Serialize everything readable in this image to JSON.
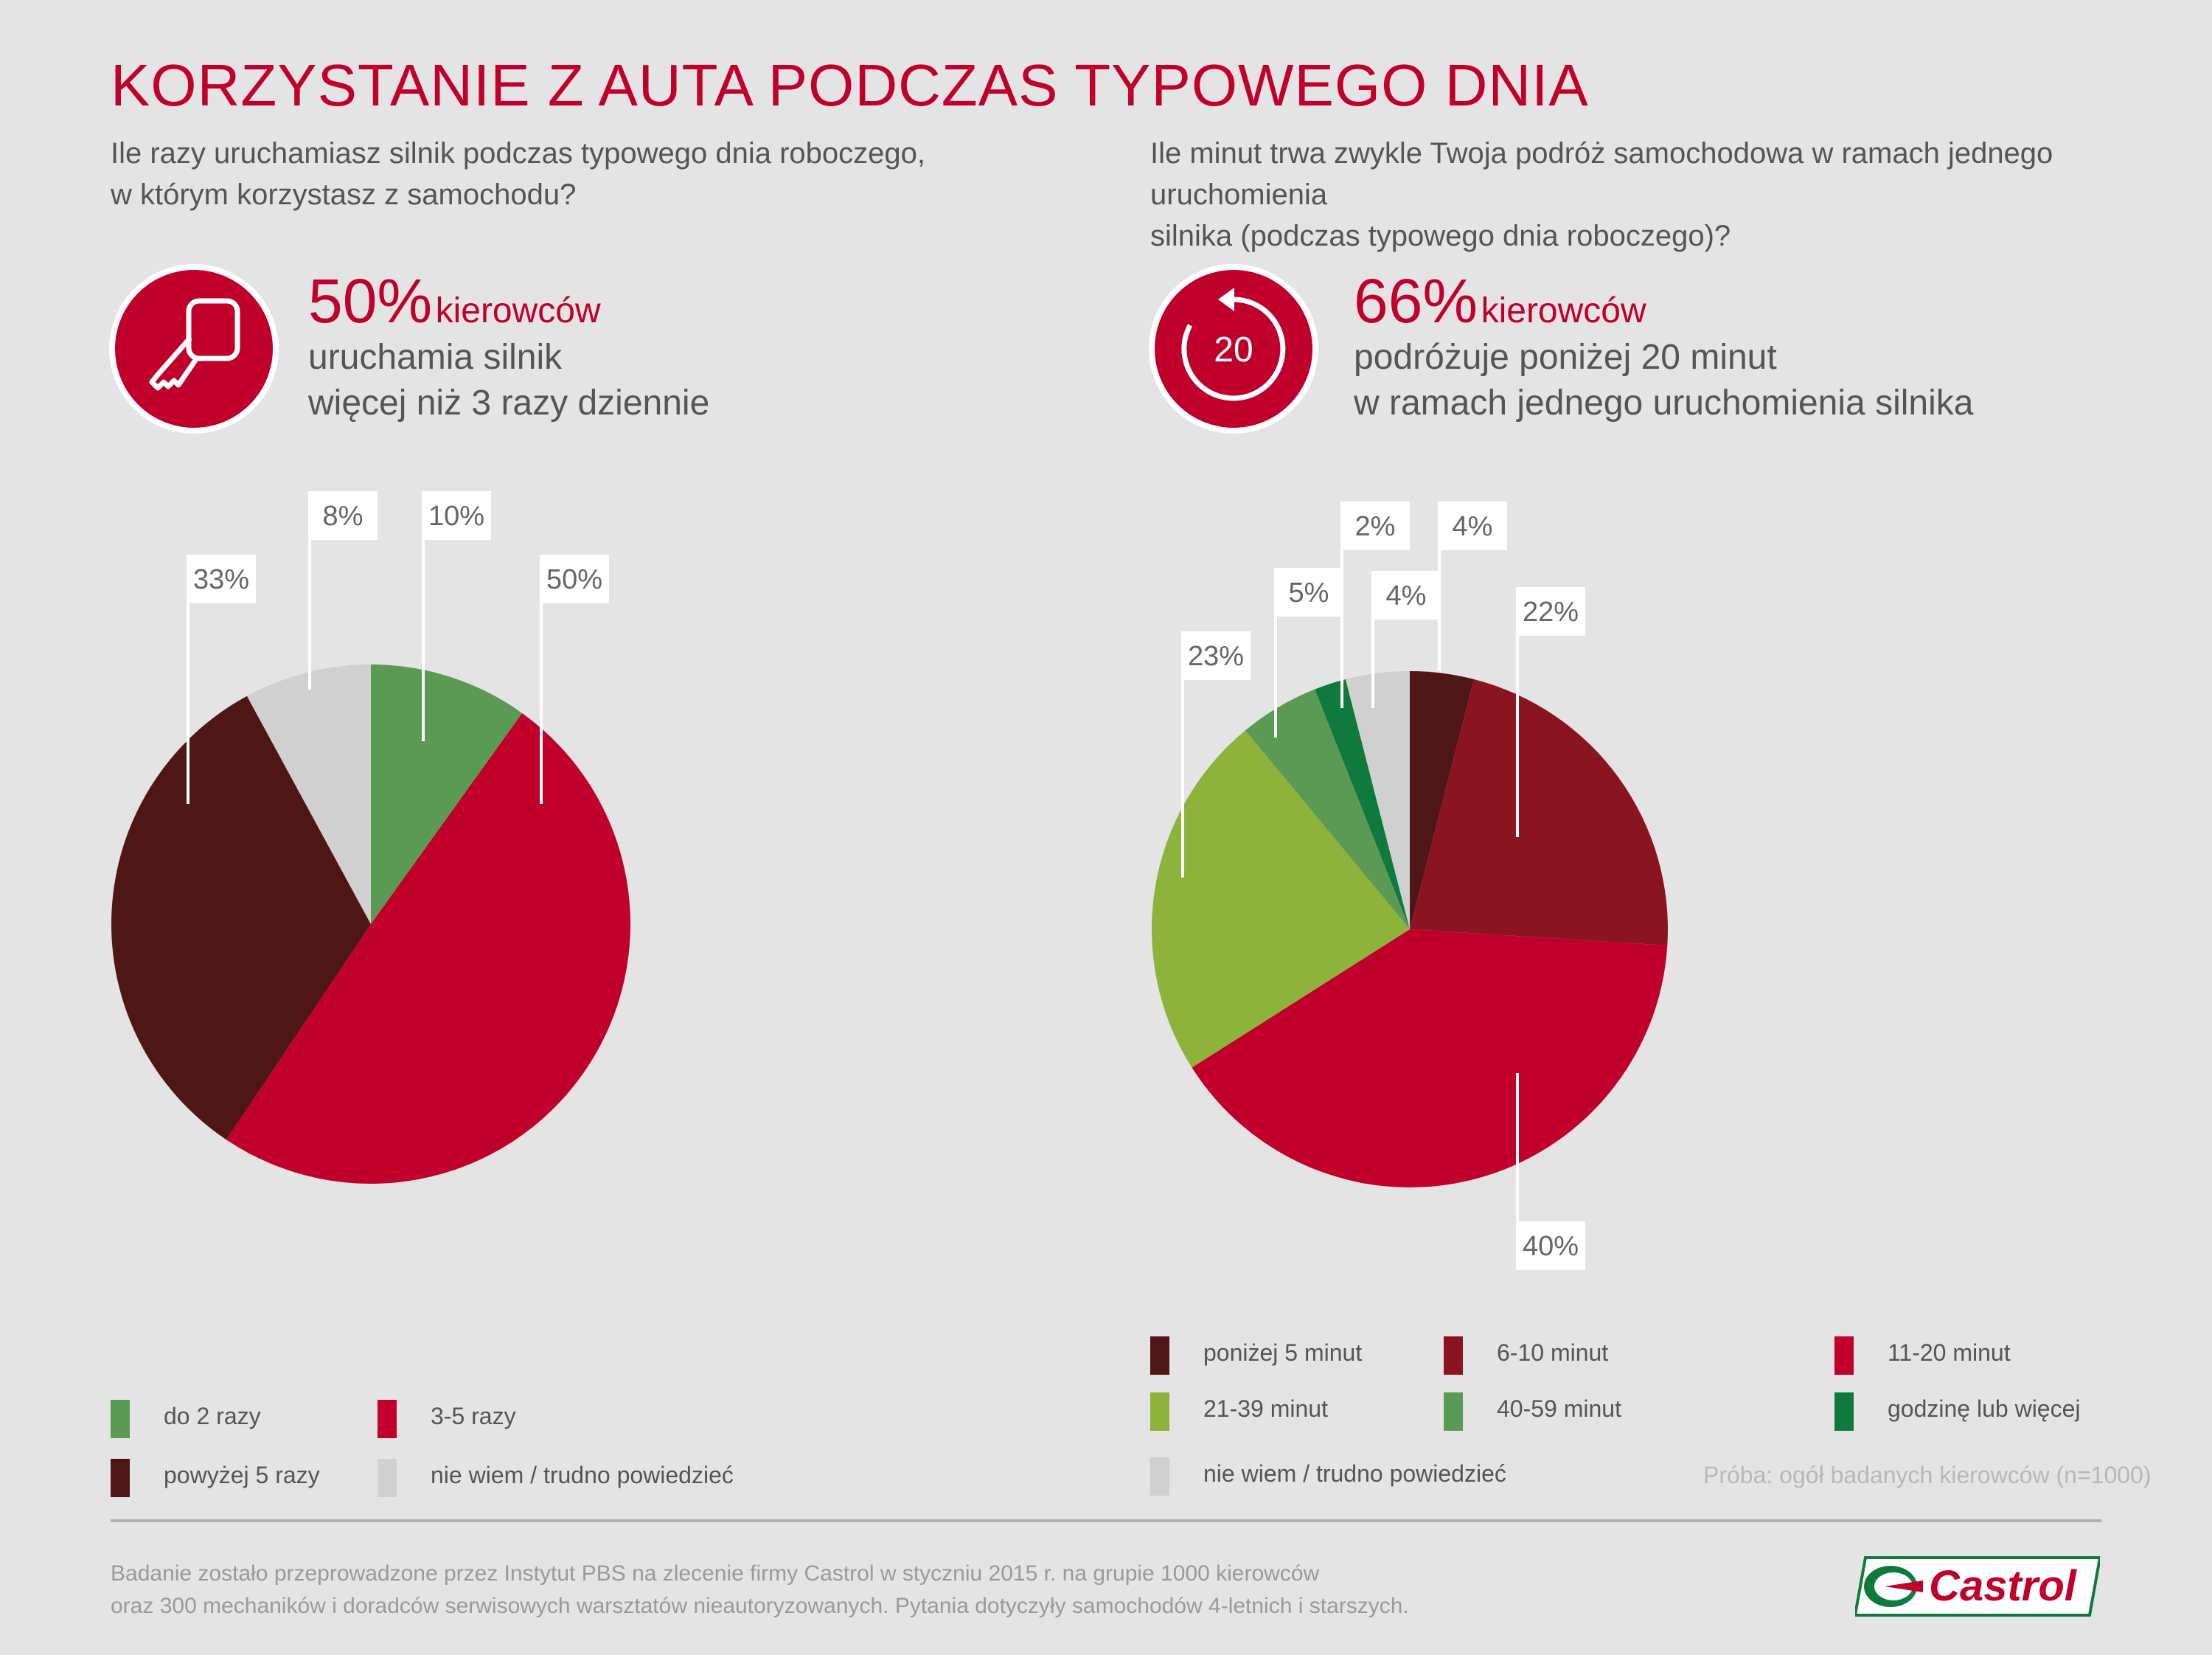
{
  "title": "KORZYSTANIE Z AUTA PODCZAS TYPOWEGO DNIA",
  "left": {
    "question_line1": "Ile razy uruchamiasz silnik podczas typowego dnia roboczego,",
    "question_line2": "w którym korzystasz z samochodu?",
    "icon": "car-key-icon",
    "stat_value": "50%",
    "stat_unit": "kierowców",
    "stat_line1": "uruchamia silnik",
    "stat_line2": "więcej niż 3 razy dziennie"
  },
  "right": {
    "question_line1": "Ile minut trwa zwykle Twoja podróż samochodowa w ramach jednego uruchomienia",
    "question_line2": "silnika (podczas typowego dnia roboczego)?",
    "icon": "timer-20-icon",
    "icon_text": "20",
    "stat_value": "66%",
    "stat_unit": "kierowców",
    "stat_line1": "podróżuje poniżej 20 minut",
    "stat_line2": "w ramach jednego uruchomienia silnika"
  },
  "colors": {
    "accent": "#c0002a",
    "background": "#e4e4e4",
    "label_box": "#ffffff"
  },
  "chart_data": [
    {
      "type": "pie",
      "categories": [
        "do 2 razy",
        "3-5 razy",
        "powyżej 5 razy",
        "nie wiem / trudno powiedzieć"
      ],
      "values": [
        10,
        50,
        33,
        8
      ],
      "labels": [
        "10%",
        "50%",
        "33%",
        "8%"
      ],
      "colors": [
        "#5a9a55",
        "#c0002a",
        "#4f1616",
        "#d0d0d0"
      ],
      "legend_placement": "bottom"
    },
    {
      "type": "pie",
      "categories": [
        "poniżej 5 minut",
        "6-10 minut",
        "11-20 minut",
        "21-39 minut",
        "40-59 minut",
        "godzinę lub więcej",
        "nie wiem / trudno powiedzieć"
      ],
      "values": [
        4,
        22,
        40,
        23,
        5,
        2,
        4
      ],
      "labels": [
        "4%",
        "22%",
        "40%",
        "23%",
        "5%",
        "2%",
        "4%"
      ],
      "colors": [
        "#4f1616",
        "#8a1520",
        "#c0002a",
        "#8db33a",
        "#5a9a55",
        "#0f7a3c",
        "#d0d0d0"
      ],
      "legend_placement": "bottom"
    }
  ],
  "sample_note": "Próba: ogół badanych kierowców (n=1000)",
  "footer_line1": "Badanie zostało przeprowadzone przez Instytut PBS na zlecenie firmy Castrol w styczniu 2015 r. na grupie 1000 kierowców",
  "footer_line2": "oraz 300 mechaników i doradców serwisowych warsztatów nieautoryzowanych. Pytania dotyczyły samochodów 4-letnich i starszych.",
  "logo": {
    "icon": "castrol-logo",
    "text": "Castrol"
  }
}
